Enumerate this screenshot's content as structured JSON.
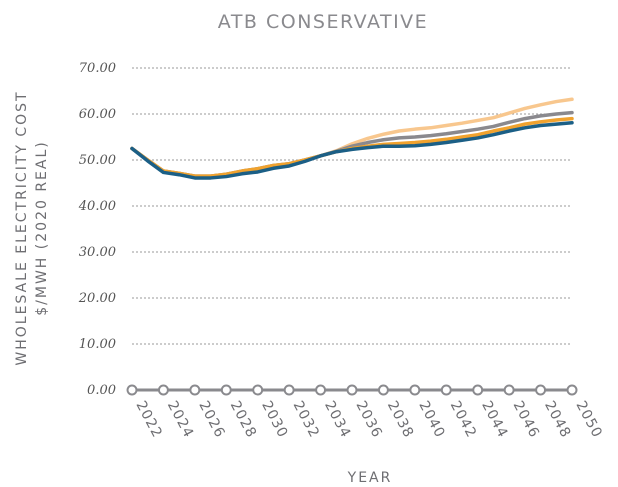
{
  "chart_data": {
    "type": "line",
    "title": "ATB CONSERVATIVE",
    "y_label": [
      "WHOLESALE ELECTRICITY COST",
      "$/MWH (2020 REAL)"
    ],
    "x_label": "YEAR",
    "x": [
      2022,
      2023,
      2024,
      2025,
      2026,
      2027,
      2028,
      2029,
      2030,
      2031,
      2032,
      2033,
      2034,
      2035,
      2036,
      2037,
      2038,
      2039,
      2040,
      2041,
      2042,
      2043,
      2044,
      2045,
      2046,
      2047,
      2048,
      2049,
      2050
    ],
    "xlim": [
      2022,
      2050
    ],
    "xticks": [
      2022,
      2024,
      2026,
      2028,
      2030,
      2032,
      2034,
      2036,
      2038,
      2040,
      2042,
      2044,
      2046,
      2048,
      2050
    ],
    "ylim": [
      0,
      70
    ],
    "yticks": [
      {
        "value": 0,
        "label": "0.00"
      },
      {
        "value": 10,
        "label": "10.00"
      },
      {
        "value": 20,
        "label": "20.00"
      },
      {
        "value": 30,
        "label": "30.00"
      },
      {
        "value": 40,
        "label": "40.00"
      },
      {
        "value": 50,
        "label": "50.00"
      },
      {
        "value": 60,
        "label": "60.00"
      },
      {
        "value": 70,
        "label": "70.00"
      }
    ],
    "grid": true,
    "series": [
      {
        "color": "#f8c78e",
        "values": [
          52.5,
          50,
          47.6,
          47.1,
          46.5,
          46.5,
          46.9,
          47.6,
          48.1,
          48.8,
          49.2,
          50,
          50.9,
          52,
          53.5,
          54.7,
          55.6,
          56.3,
          56.7,
          57,
          57.5,
          58,
          58.6,
          59.2,
          60.2,
          61.2,
          62,
          62.7,
          63.2
        ]
      },
      {
        "color": "#8a898e",
        "values": [
          52.5,
          50,
          47.6,
          47.1,
          46.5,
          46.5,
          46.9,
          47.6,
          48.1,
          48.8,
          49.2,
          50,
          50.9,
          51.9,
          53,
          53.8,
          54.4,
          54.8,
          55,
          55.3,
          55.7,
          56.2,
          56.7,
          57.3,
          58.2,
          59,
          59.6,
          60,
          60.3
        ]
      },
      {
        "color": "#f0a22e",
        "values": [
          52.5,
          50,
          47.6,
          47.1,
          46.5,
          46.5,
          46.9,
          47.6,
          48.1,
          48.8,
          49.2,
          50,
          50.9,
          51.8,
          52.5,
          53,
          53.4,
          53.6,
          53.8,
          54.1,
          54.5,
          55,
          55.5,
          56.3,
          57,
          57.8,
          58.3,
          58.7,
          59
        ]
      },
      {
        "color": "#1b5f86",
        "values": [
          52.5,
          49.8,
          47.3,
          46.8,
          46.1,
          46.1,
          46.4,
          47,
          47.4,
          48.2,
          48.7,
          49.7,
          50.9,
          51.8,
          52.3,
          52.7,
          53,
          53,
          53.1,
          53.4,
          53.8,
          54.3,
          54.8,
          55.5,
          56.3,
          57,
          57.5,
          57.8,
          58.1
        ]
      }
    ]
  }
}
